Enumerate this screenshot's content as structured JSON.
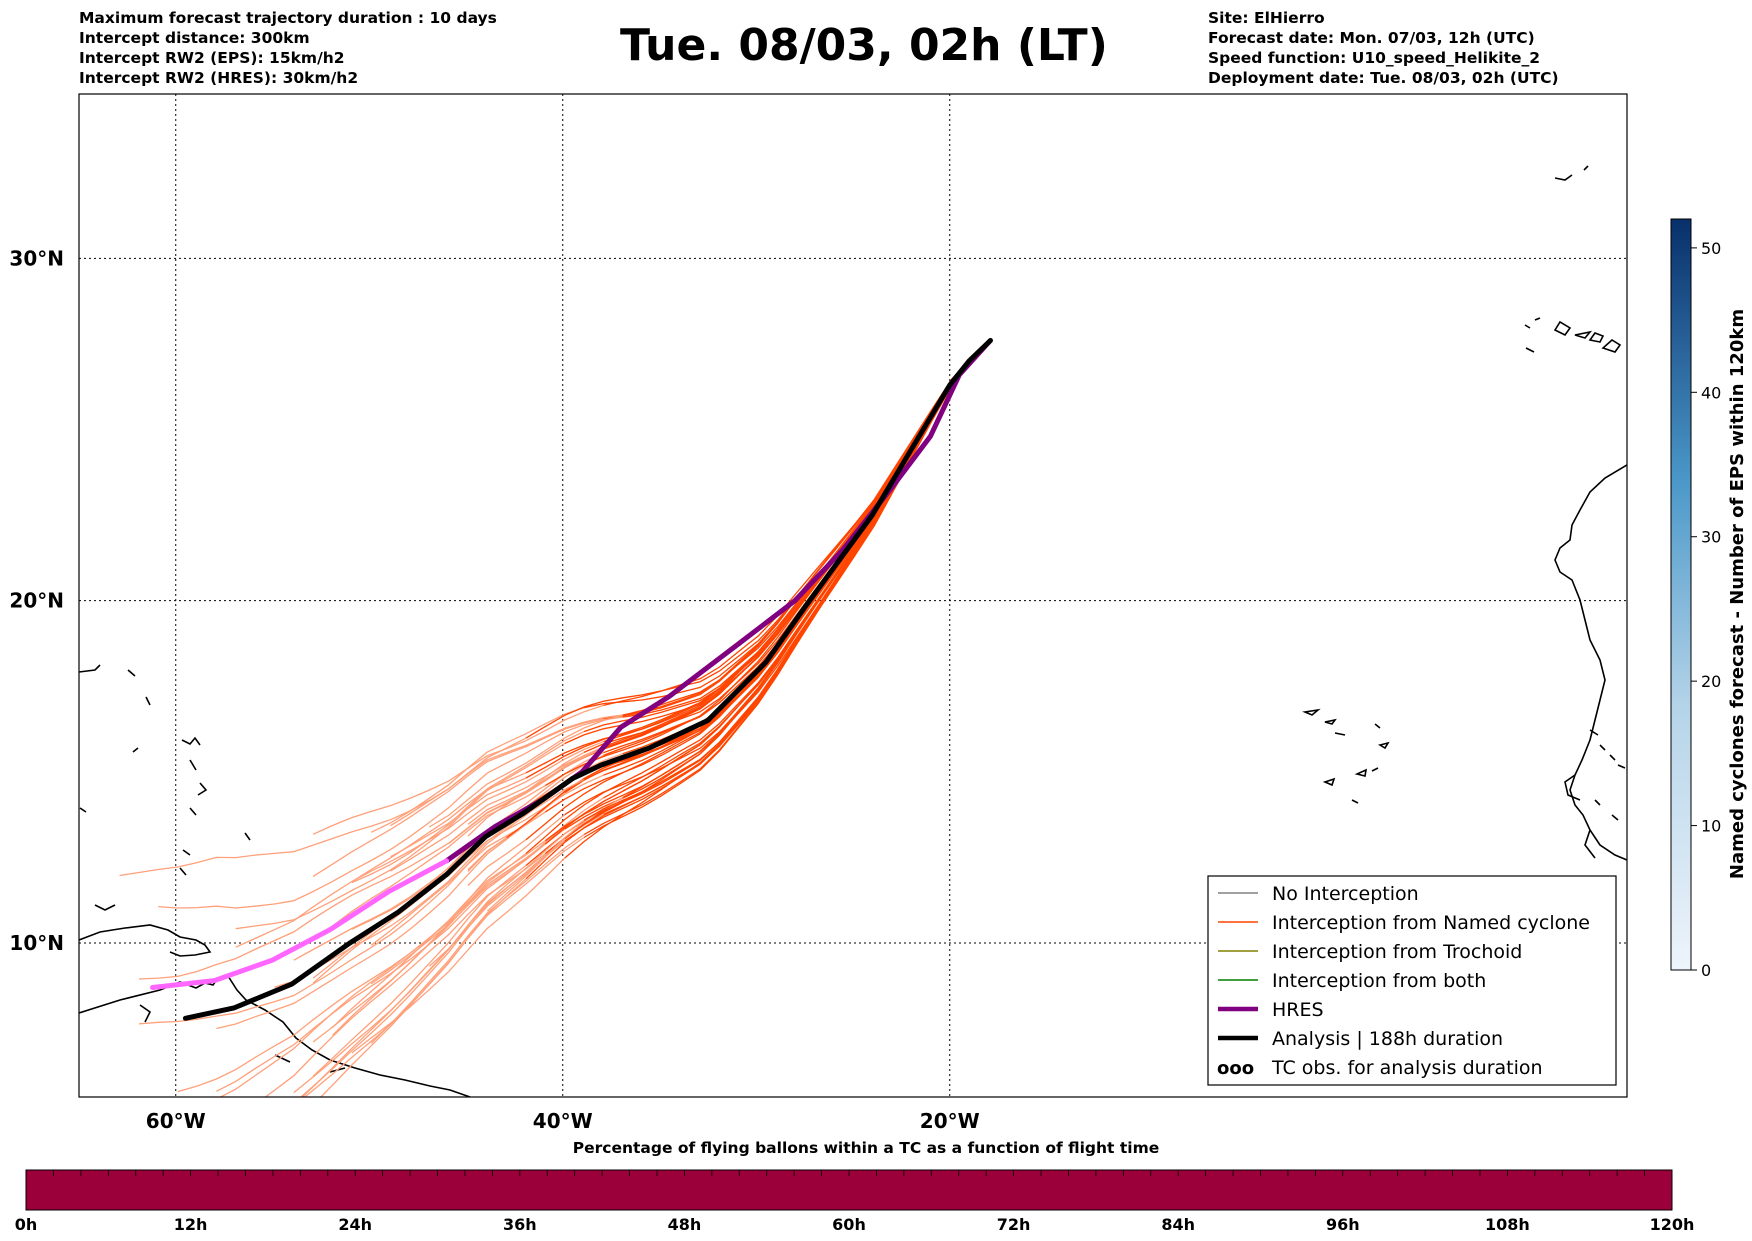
{
  "header": {
    "left_lines": [
      "Maximum forecast trajectory duration : 10 days",
      "Intercept distance: 300km",
      "Intercept RW2 (EPS):  15km/h2",
      "Intercept RW2 (HRES): 30km/h2"
    ],
    "right_lines": [
      "Site: ElHierro",
      "Forecast date: Mon. 07/03, 12h (UTC)",
      "Speed function: U10_speed_Helikite_2",
      "Deployment date: Tue. 08/03, 02h (UTC)"
    ],
    "title": "Tue. 08/03, 02h (LT)"
  },
  "map": {
    "lon_range": [
      -65,
      15
    ],
    "lat_range": [
      5.5,
      34.8
    ],
    "lon_ticks": [
      {
        "lon": -60,
        "label": "60°W"
      },
      {
        "lon": -40,
        "label": "40°W"
      },
      {
        "lon": -20,
        "label": "20°W"
      }
    ],
    "lat_ticks": [
      {
        "lat": 30,
        "label": "30°N"
      },
      {
        "lat": 20,
        "label": "20°N"
      },
      {
        "lat": 10,
        "label": "10°N"
      }
    ],
    "colors": {
      "named_cyclone": "#ff4500",
      "named_cyclone_light": "#ffa07a",
      "hres": "#800080",
      "hres_light": "#ff66ff",
      "analysis": "#000000",
      "no_interception": "#808080",
      "trochoid": "#808000",
      "both": "#008000"
    },
    "hres_track": [
      [
        -17.9,
        27.6
      ],
      [
        -19.5,
        26.6
      ],
      [
        -21,
        24.8
      ],
      [
        -23,
        23.3
      ],
      [
        -25.5,
        21.5
      ],
      [
        -28,
        20.0
      ],
      [
        -31,
        18.7
      ],
      [
        -34.5,
        17.2
      ],
      [
        -37,
        16.3
      ],
      [
        -39,
        15.0
      ],
      [
        -41,
        14.2
      ],
      [
        -43.5,
        13.4
      ],
      [
        -46,
        12.4
      ],
      [
        -49,
        11.5
      ],
      [
        -52,
        10.4
      ],
      [
        -55,
        9.5
      ],
      [
        -58,
        8.9
      ],
      [
        -61.2,
        8.7
      ]
    ],
    "analysis_track": [
      [
        -17.9,
        27.6
      ],
      [
        -19.0,
        27.0
      ],
      [
        -20.0,
        26.3
      ],
      [
        -22.0,
        24.4
      ],
      [
        -24.0,
        22.5
      ],
      [
        -27.5,
        19.8
      ],
      [
        -29.5,
        18.2
      ],
      [
        -32.5,
        16.5
      ],
      [
        -35.5,
        15.7
      ],
      [
        -38.0,
        15.2
      ],
      [
        -39.5,
        14.8
      ],
      [
        -42.0,
        13.8
      ],
      [
        -44.0,
        13.1
      ],
      [
        -46.0,
        12.0
      ],
      [
        -48.5,
        10.9
      ],
      [
        -51.0,
        10.0
      ],
      [
        -54.0,
        8.8
      ],
      [
        -57.0,
        8.1
      ],
      [
        -59.5,
        7.8
      ]
    ]
  },
  "legend": {
    "items": [
      {
        "label": "No Interception",
        "color": "#808080",
        "style": "thin"
      },
      {
        "label": "Interception from Named cyclone",
        "color": "#ff4500",
        "style": "thin"
      },
      {
        "label": "Interception from Trochoid",
        "color": "#808000",
        "style": "thin"
      },
      {
        "label": "Interception from both",
        "color": "#008000",
        "style": "thin"
      },
      {
        "label": "HRES",
        "color": "#800080",
        "style": "thick"
      },
      {
        "label": "Analysis | 188h duration",
        "color": "#000000",
        "style": "thick"
      },
      {
        "label": "TC obs. for analysis duration",
        "color": "#000000",
        "style": "symbol"
      }
    ]
  },
  "colorbar": {
    "label": "Named cyclones forecast - Number of EPS within 120km",
    "min": 0,
    "max": 52,
    "ticks": [
      0,
      10,
      20,
      30,
      40,
      50
    ],
    "colors": [
      "#eef4fb",
      "#08306b"
    ]
  },
  "timeline": {
    "title": "Percentage of flying ballons within a TC as a function of flight time",
    "color": "#9b003a",
    "ticks": [
      "0h",
      "12h",
      "24h",
      "36h",
      "48h",
      "60h",
      "72h",
      "84h",
      "96h",
      "108h",
      "120h"
    ]
  }
}
